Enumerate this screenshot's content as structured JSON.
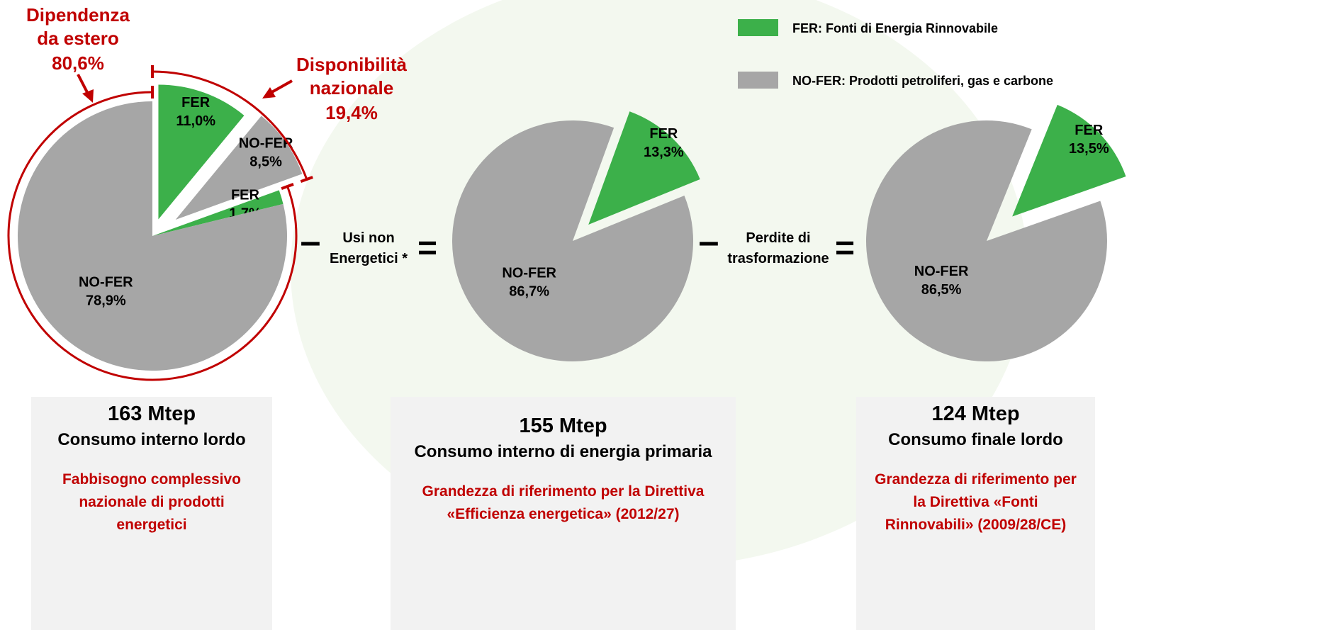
{
  "chart_data": [
    {
      "type": "pie",
      "categories": [
        "FER",
        "NO-FER",
        "FER",
        "NO-FER"
      ],
      "values": [
        11.0,
        8.5,
        1.7,
        78.9
      ],
      "value_labels": [
        "11,0%",
        "8,5%",
        "1,7%",
        "78,9%"
      ],
      "colors": [
        "#3cb04a",
        "#a6a6a6",
        "#3cb04a",
        "#a6a6a6"
      ],
      "title": "163 Mtep",
      "subtitle": "Consumo interno lordo",
      "note": "Fabbisogno complessivo nazionale di prodotti energetici",
      "annotations": [
        {
          "lines": [
            "Dipendenza",
            "da estero"
          ],
          "value": 80.6,
          "value_label": "80,6%"
        },
        {
          "lines": [
            "Disponibilità",
            "nazionale"
          ],
          "value": 19.4,
          "value_label": "19,4%"
        }
      ]
    },
    {
      "type": "pie",
      "categories": [
        "FER",
        "NO-FER"
      ],
      "values": [
        13.3,
        86.7
      ],
      "value_labels": [
        "13,3%",
        "86,7%"
      ],
      "colors": [
        "#3cb04a",
        "#a6a6a6"
      ],
      "title": "155 Mtep",
      "subtitle": "Consumo interno di energia primaria",
      "note": "Grandezza di riferimento per la Direttiva «Efficienza energetica» (2012/27)"
    },
    {
      "type": "pie",
      "categories": [
        "FER",
        "NO-FER"
      ],
      "values": [
        13.5,
        86.5
      ],
      "value_labels": [
        "13,5%",
        "86,5%"
      ],
      "colors": [
        "#3cb04a",
        "#a6a6a6"
      ],
      "title": "124 Mtep",
      "subtitle": "Consumo finale lordo",
      "note": "Grandezza di riferimento per la Direttiva «Fonti Rinnovabili» (2009/28/CE)"
    }
  ],
  "legend": [
    {
      "label": "FER: Fonti di Energia Rinnovabile",
      "color": "#3cb04a"
    },
    {
      "label": "NO-FER: Prodotti petroliferi, gas e carbone",
      "color": "#a6a6a6"
    }
  ],
  "operators": [
    {
      "symbol": "–",
      "lines": [
        "Usi non",
        "Energetici *"
      ],
      "result": "="
    },
    {
      "symbol": "–",
      "lines": [
        "Perdite di",
        "trasformazione"
      ],
      "result": "="
    }
  ]
}
